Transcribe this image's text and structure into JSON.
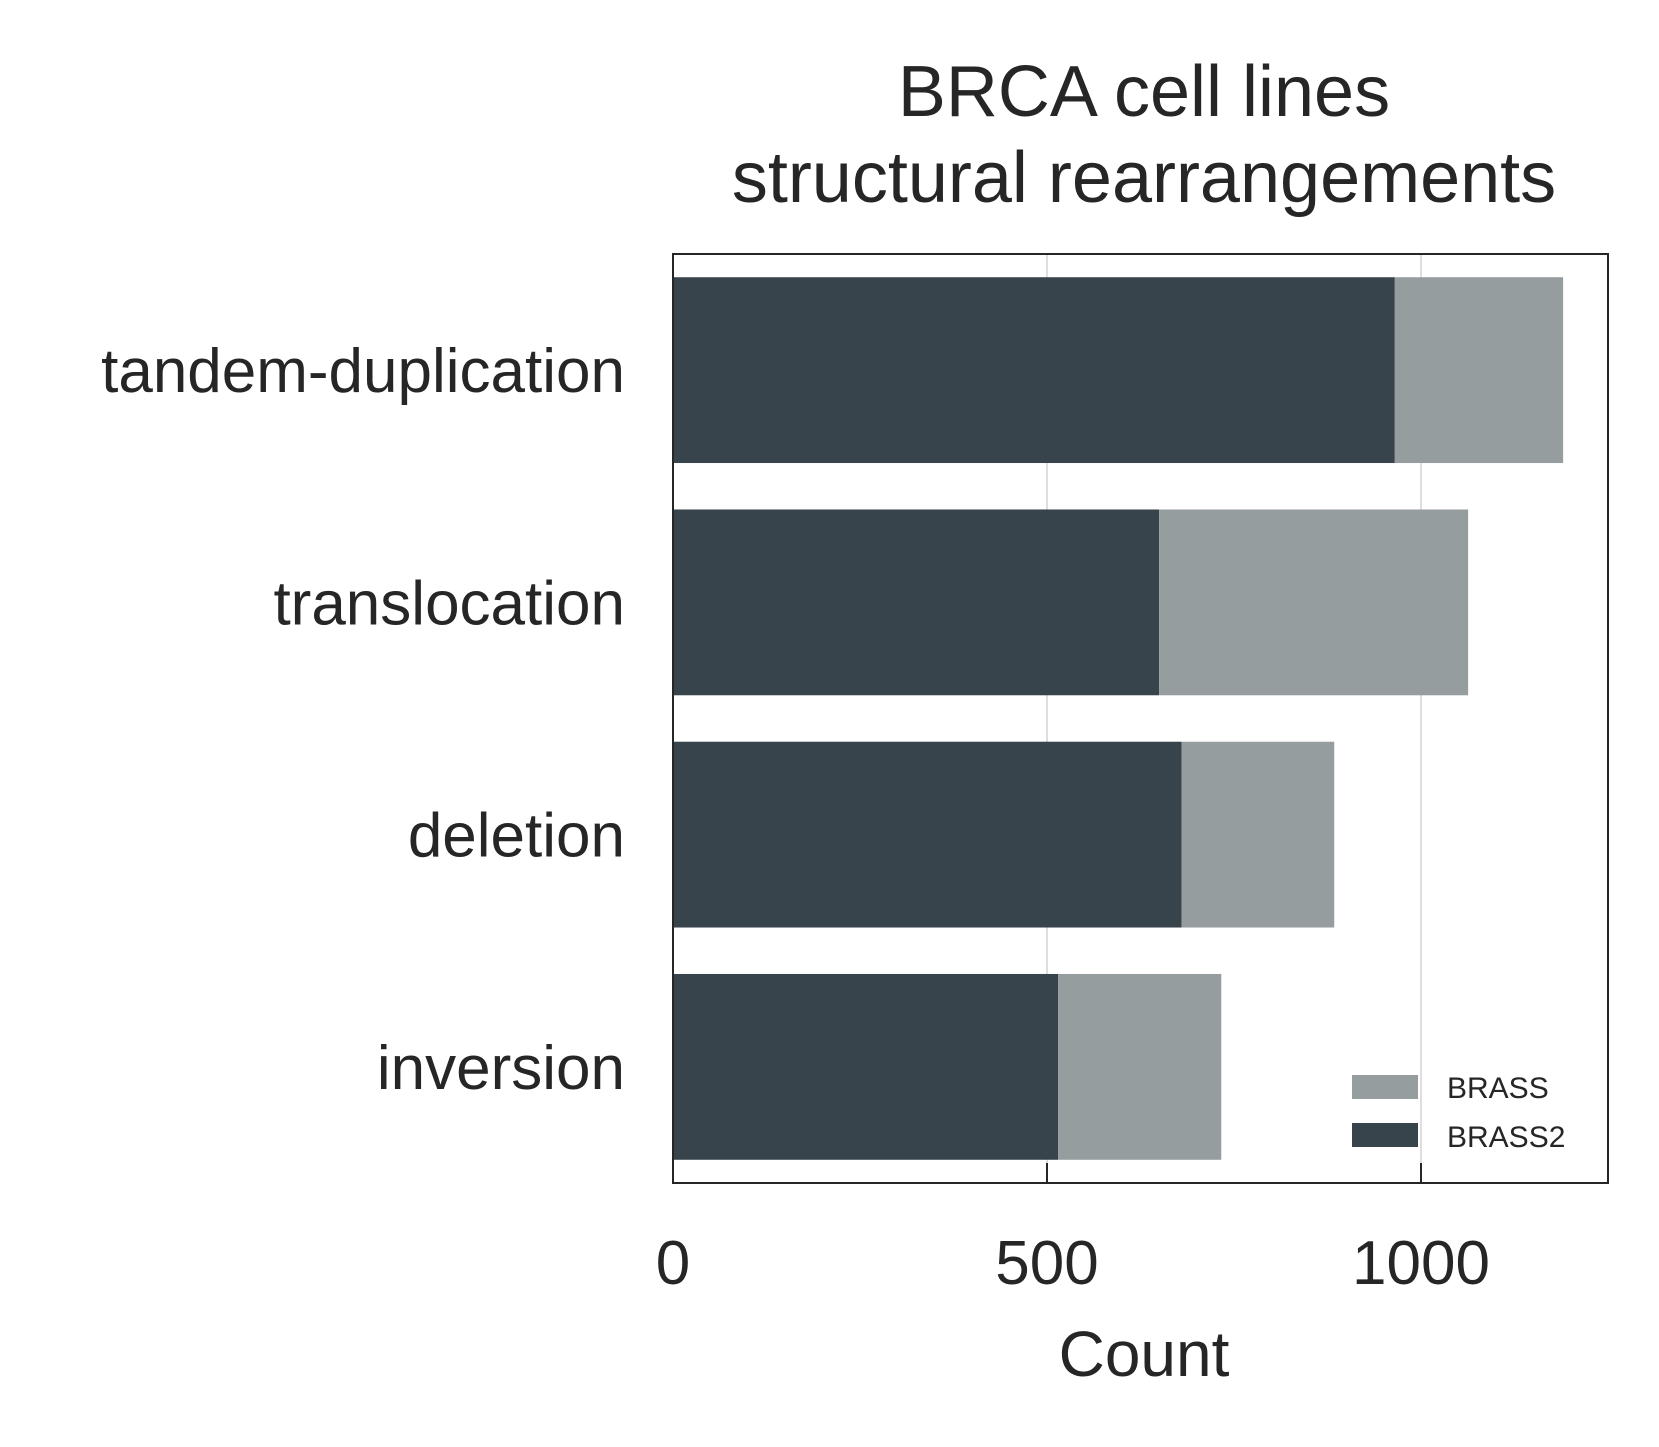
{
  "chart_data": {
    "type": "bar",
    "orientation": "horizontal",
    "stacked": true,
    "title": [
      "BRCA cell lines",
      "structural rearrangements"
    ],
    "xlabel": "Count",
    "ylabel": "",
    "categories": [
      "tandem-duplication",
      "translocation",
      "deletion",
      "inversion"
    ],
    "series": [
      {
        "name": "BRASS2",
        "values": [
          965,
          650,
          680,
          515
        ],
        "color": "#38444b"
      },
      {
        "name": "BRASS",
        "values": [
          225,
          413,
          204,
          218
        ],
        "color": "#959d9f"
      }
    ],
    "xlim": [
      0,
      1250
    ],
    "xticks": [
      0,
      500,
      1000
    ],
    "xtick_labels": [
      "0",
      "500",
      "1000"
    ],
    "grid": "vertical",
    "legend": {
      "position": "bottom-right",
      "order": [
        "BRASS",
        "BRASS2"
      ]
    }
  }
}
